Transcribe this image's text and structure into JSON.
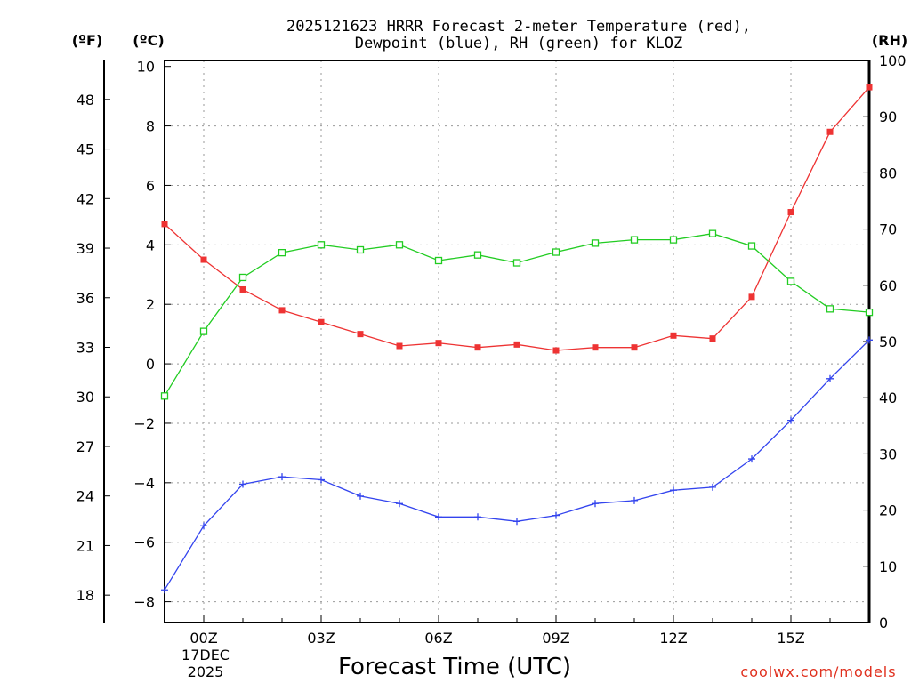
{
  "chart_data": {
    "type": "line",
    "title_line1": "2025121623 HRRR Forecast 2-meter Temperature (red),",
    "title_line2": "Dewpoint (blue), RH (green) for KLOZ",
    "xlabel": "Forecast Time (UTC)",
    "credit": "coolwx.com/models",
    "unit_f": "(ºF)",
    "unit_c": "(ºC)",
    "unit_rh": "(RH)",
    "x_hours": [
      -1,
      0,
      1,
      2,
      3,
      4,
      5,
      6,
      7,
      8,
      9,
      10,
      11,
      12,
      13,
      14,
      15,
      16,
      17
    ],
    "x_ticks": [
      {
        "hour": 0,
        "label": "00Z"
      },
      {
        "hour": 3,
        "label": "03Z"
      },
      {
        "hour": 6,
        "label": "06Z"
      },
      {
        "hour": 9,
        "label": "09Z"
      },
      {
        "hour": 12,
        "label": "12Z"
      },
      {
        "hour": 15,
        "label": "15Z"
      }
    ],
    "date_label_1": "17DEC",
    "date_label_2": "2025",
    "xlim": [
      -1,
      17
    ],
    "ylim_c": [
      -8.7,
      10.2
    ],
    "ylim_rh": [
      0,
      100
    ],
    "c_ticks": [
      "-8",
      "-6",
      "-4",
      "-2",
      "0",
      "2",
      "4",
      "6",
      "8",
      "10"
    ],
    "f_ticks": [
      "18",
      "21",
      "24",
      "27",
      "30",
      "33",
      "36",
      "39",
      "42",
      "45",
      "48"
    ],
    "rh_ticks": [
      "0",
      "10",
      "20",
      "30",
      "40",
      "50",
      "60",
      "70",
      "80",
      "90",
      "100"
    ],
    "series": [
      {
        "name": "Temperature",
        "unit": "C",
        "color": "#ee3333",
        "marker": "filled-square",
        "values": [
          4.7,
          3.5,
          2.5,
          1.8,
          1.4,
          1.0,
          0.6,
          0.7,
          0.55,
          0.65,
          0.45,
          0.55,
          0.55,
          0.95,
          0.85,
          2.25,
          5.1,
          7.8,
          9.3
        ]
      },
      {
        "name": "Dewpoint",
        "unit": "C",
        "color": "#3344ee",
        "marker": "plus",
        "values": [
          -7.6,
          -5.45,
          -4.05,
          -3.8,
          -3.9,
          -4.45,
          -4.7,
          -5.15,
          -5.15,
          -5.3,
          -5.1,
          -4.7,
          -4.6,
          -4.25,
          -4.15,
          -3.2,
          -1.9,
          -0.5,
          0.8
        ]
      },
      {
        "name": "Relative Humidity",
        "unit": "%",
        "color": "#22cc22",
        "marker": "open-square",
        "values": [
          40.3,
          51.8,
          61.4,
          65.8,
          67.2,
          66.3,
          67.2,
          64.4,
          65.4,
          64.0,
          65.9,
          67.5,
          68.1,
          68.1,
          69.2,
          67.0,
          60.7,
          55.8,
          55.2
        ]
      }
    ]
  }
}
